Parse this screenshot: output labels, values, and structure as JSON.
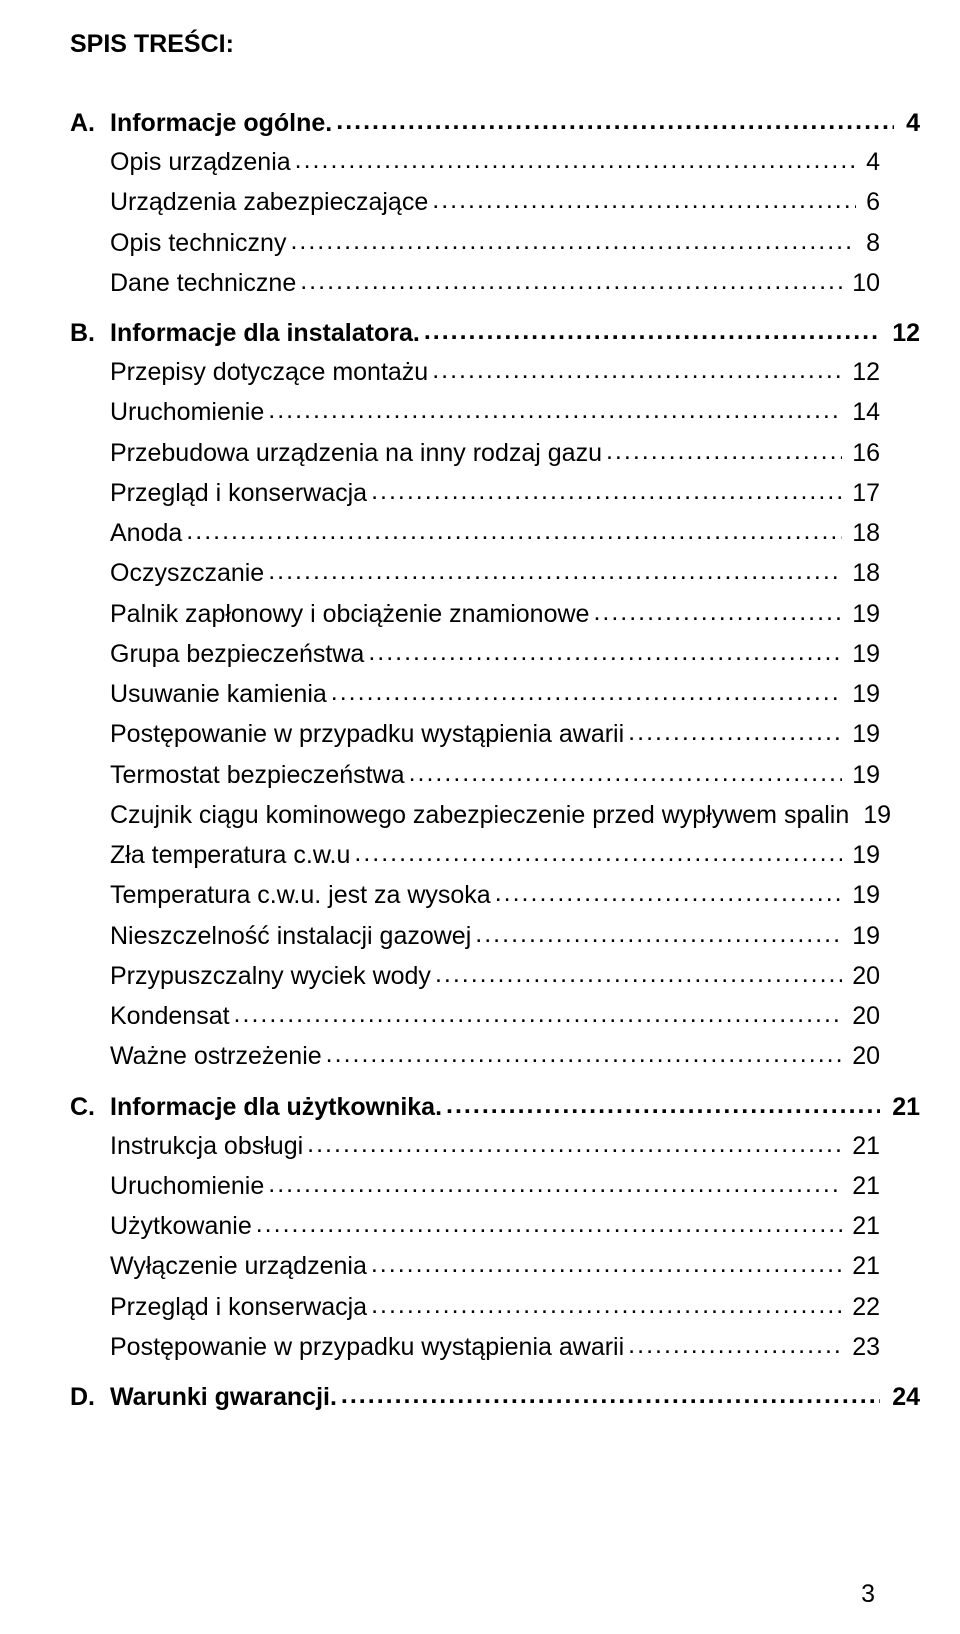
{
  "title": "SPIS TREŚCI:",
  "page_number": "3",
  "text_color": "#000000",
  "background_color": "#ffffff",
  "font_size_pt": 19,
  "sections": [
    {
      "letter": "A.",
      "title": "Informacje ogólne.",
      "page": "4",
      "items": [
        {
          "text": "Opis urządzenia",
          "page": "4"
        },
        {
          "text": "Urządzenia zabezpieczające",
          "page": "6"
        },
        {
          "text": "Opis techniczny",
          "page": "8"
        },
        {
          "text": "Dane techniczne",
          "page": "10"
        }
      ]
    },
    {
      "letter": "B.",
      "title": "Informacje dla instalatora.",
      "page": "12",
      "items": [
        {
          "text": "Przepisy dotyczące montażu",
          "page": "12"
        },
        {
          "text": "Uruchomienie",
          "page": "14"
        },
        {
          "text": "Przebudowa urządzenia na inny rodzaj gazu",
          "page": "16"
        },
        {
          "text": "Przegląd i konserwacja",
          "page": "17"
        },
        {
          "text": "Anoda",
          "page": "18"
        },
        {
          "text": "Oczyszczanie",
          "page": "18"
        },
        {
          "text": "Palnik zapłonowy i obciążenie znamionowe",
          "page": "19"
        },
        {
          "text": "Grupa bezpieczeństwa",
          "page": "19"
        },
        {
          "text": "Usuwanie kamienia",
          "page": "19"
        },
        {
          "text": "Postępowanie w przypadku wystąpienia awarii",
          "page": "19"
        },
        {
          "text": "Termostat bezpieczeństwa",
          "page": "19"
        },
        {
          "text": "Czujnik ciągu kominowego zabezpieczenie przed wypływem spalin",
          "page": "19"
        },
        {
          "text": "Zła temperatura c.w.u",
          "page": "19"
        },
        {
          "text": "Temperatura c.w.u. jest za wysoka",
          "page": "19"
        },
        {
          "text": "Nieszczelność instalacji gazowej",
          "page": "19"
        },
        {
          "text": "Przypuszczalny wyciek wody",
          "page": "20"
        },
        {
          "text": "Kondensat",
          "page": "20"
        },
        {
          "text": "Ważne ostrzeżenie",
          "page": "20"
        }
      ]
    },
    {
      "letter": "C.",
      "title": "Informacje dla użytkownika.",
      "page": "21",
      "items": [
        {
          "text": "Instrukcja obsługi",
          "page": "21"
        },
        {
          "text": "Uruchomienie",
          "page": "21"
        },
        {
          "text": "Użytkowanie",
          "page": "21"
        },
        {
          "text": "Wyłączenie urządzenia",
          "page": "21"
        },
        {
          "text": "Przegląd i konserwacja",
          "page": "22"
        },
        {
          "text": "Postępowanie w przypadku wystąpienia awarii",
          "page": "23"
        }
      ]
    },
    {
      "letter": "D.",
      "title": "Warunki gwarancji.",
      "page": "24",
      "items": []
    }
  ]
}
